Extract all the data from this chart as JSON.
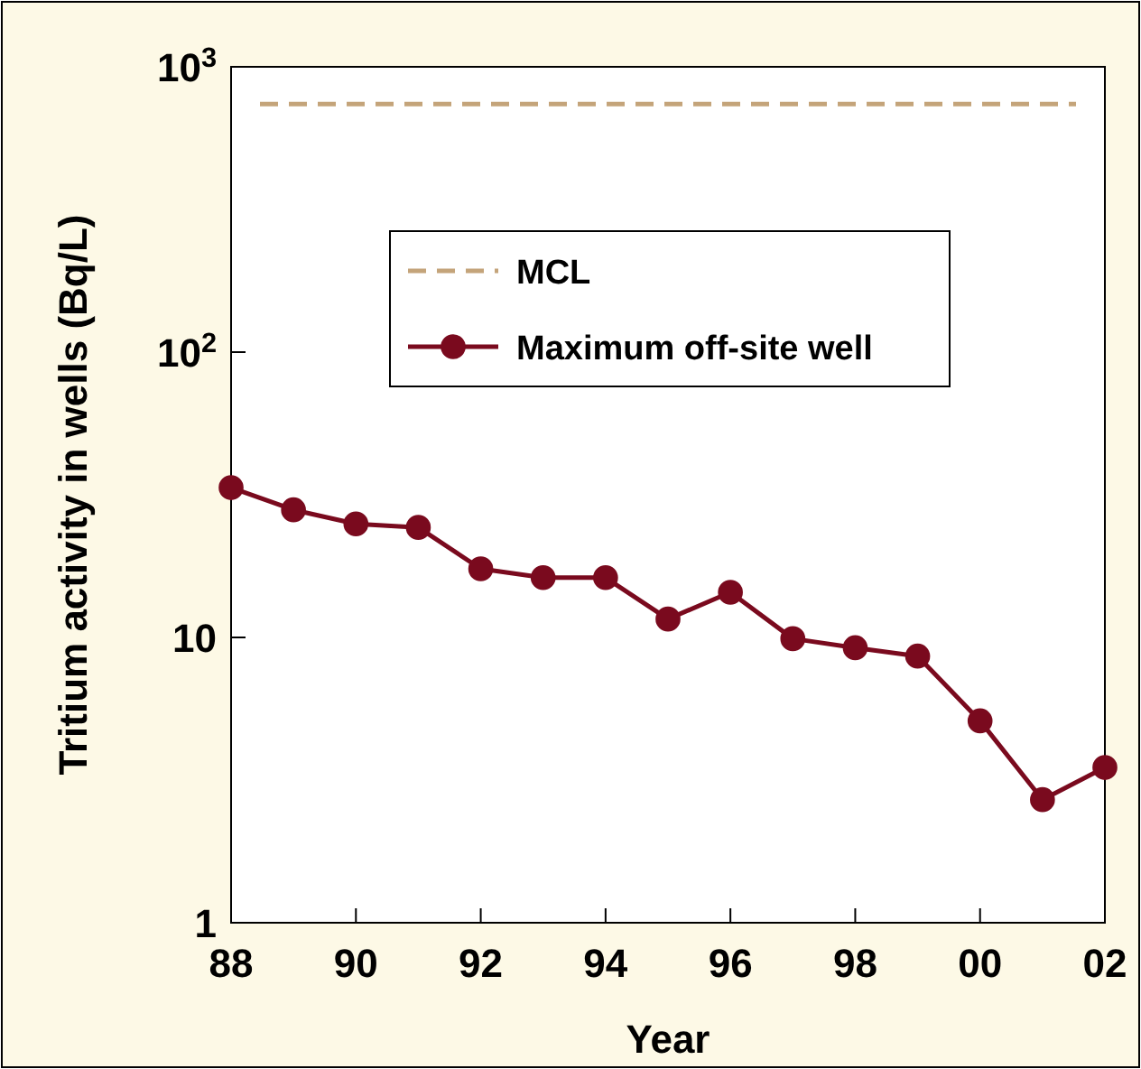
{
  "chart_data": {
    "type": "line",
    "xlabel": "Year",
    "ylabel": "Tritium activity in wells (Bq/L)",
    "x": [
      1988,
      1989,
      1990,
      1991,
      1992,
      1993,
      1994,
      1995,
      1996,
      1997,
      1998,
      1999,
      2000,
      2001,
      2002
    ],
    "series": [
      {
        "name": "Maximum off-site well",
        "color": "#7a0a1e",
        "values": [
          33.5,
          28,
          25,
          24.3,
          17.4,
          16.2,
          16.2,
          11.6,
          14.4,
          9.9,
          9.2,
          8.6,
          5.1,
          2.7,
          3.5
        ]
      }
    ],
    "ref_lines": [
      {
        "axis": "y",
        "value": 740,
        "label": "MCL",
        "color": "#c4a47a",
        "line_style": "dashed"
      }
    ],
    "xlim": [
      1988,
      2002
    ],
    "xticks": [
      {
        "value": 1988,
        "label": "88"
      },
      {
        "value": 1990,
        "label": "90"
      },
      {
        "value": 1992,
        "label": "92"
      },
      {
        "value": 1994,
        "label": "94"
      },
      {
        "value": 1996,
        "label": "96"
      },
      {
        "value": 1998,
        "label": "98"
      },
      {
        "value": 2000,
        "label": "00"
      },
      {
        "value": 2002,
        "label": "02"
      }
    ],
    "ylim": [
      1,
      1000
    ],
    "yticks": [
      1,
      10,
      {
        "value": 100,
        "label": "10$^{2}$"
      },
      {
        "value": 1000,
        "label": "10$^{3}$"
      }
    ],
    "log": true,
    "marker": "circle",
    "line_style": "solid",
    "legend": "top",
    "grid": false
  }
}
